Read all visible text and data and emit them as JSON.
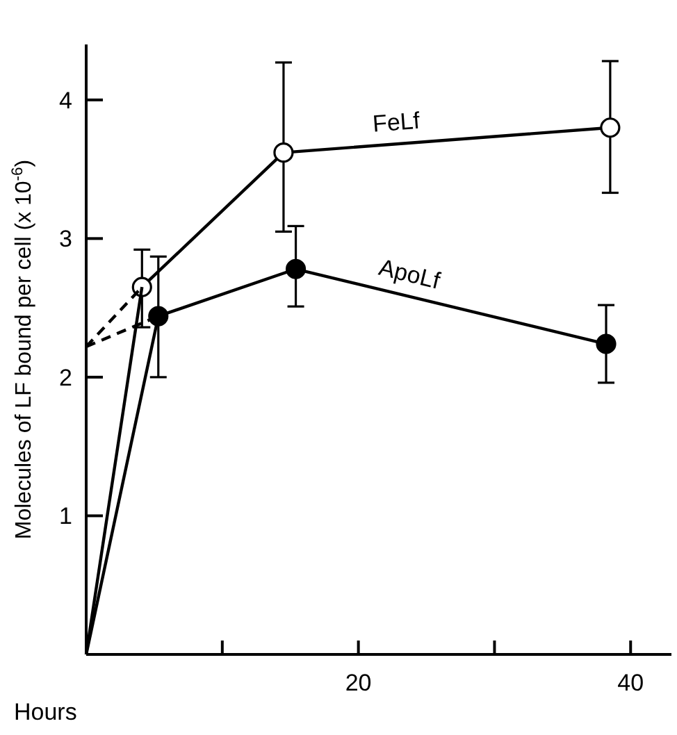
{
  "chart_data": {
    "type": "line",
    "xlabel": "Hours",
    "ylabel": "Molecules  of  LF  bound  per  cell  (x 10$^{-6}$)",
    "xlim": [
      0,
      43
    ],
    "xticks": [
      {
        "value": 10,
        "label": null
      },
      20,
      {
        "value": 30,
        "label": null
      },
      40
    ],
    "ylim": [
      0,
      4.4
    ],
    "yticks": [
      1,
      2,
      3,
      4
    ],
    "series": [
      {
        "name": "FeLf",
        "color": "#ffffff",
        "marker": "circle",
        "x": [
          4.1,
          14.5,
          38.5
        ],
        "values": [
          2.65,
          3.62,
          3.8
        ],
        "errors": [
          [
            2.36,
            2.92
          ],
          [
            3.05,
            4.27
          ],
          [
            3.33,
            4.28
          ]
        ]
      },
      {
        "name": "ApoLf",
        "color": "#000000",
        "marker": "circle",
        "x": [
          5.3,
          15.4,
          38.2
        ],
        "values": [
          2.44,
          2.78,
          2.24
        ],
        "errors": [
          [
            2.0,
            2.87
          ],
          [
            2.51,
            3.09
          ],
          [
            1.96,
            2.52
          ]
        ]
      },
      {
        "color": "#000000",
        "marker": "none",
        "x": [
          0,
          4.1
        ],
        "values": [
          0,
          2.65
        ]
      },
      {
        "color": "#000000",
        "marker": "none",
        "x": [
          0,
          5.3
        ],
        "values": [
          0,
          2.44
        ]
      },
      {
        "color": "#000000",
        "marker": "none",
        "line_style": "dashed",
        "x": [
          0,
          4.1
        ],
        "values": [
          2.22,
          2.65
        ]
      },
      {
        "color": "#000000",
        "marker": "none",
        "line_style": "dashed",
        "x": [
          0,
          5.3
        ],
        "values": [
          2.22,
          2.44
        ]
      }
    ]
  }
}
